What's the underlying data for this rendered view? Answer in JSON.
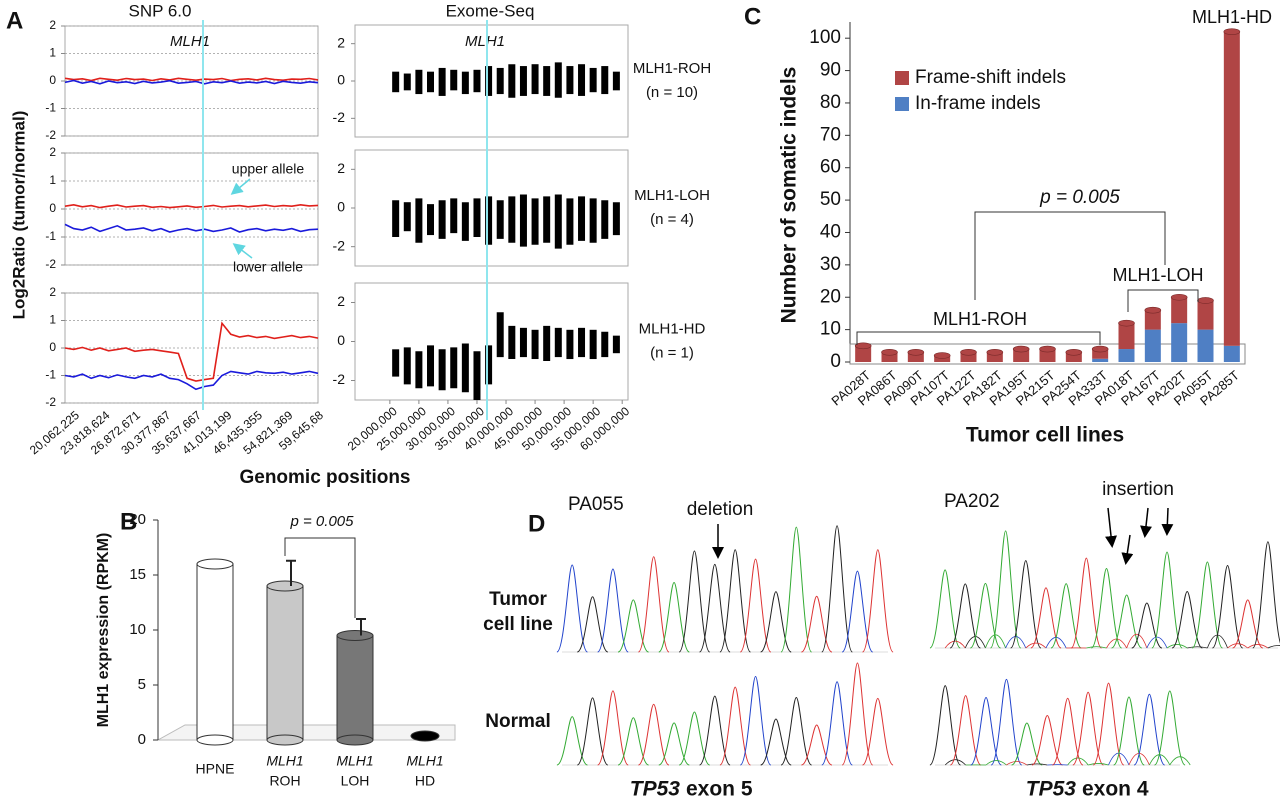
{
  "panel_labels": [
    "A",
    "B",
    "C",
    "D"
  ],
  "chart_data": [
    {
      "type": "line",
      "title": "SNP 6.0",
      "gene_label": "MLH1",
      "ylabel": "Log2Ratio (tumor/normal)",
      "xlabel": "Genomic positions",
      "x_labels": [
        "20,062,225",
        "23,818,624",
        "26,872,671",
        "30,377,867",
        "35,637,667",
        "41,013,199",
        "46,435,355",
        "54,821,369",
        "59,645,68"
      ],
      "ylim": [
        -2,
        2
      ],
      "yticks": [
        -2,
        -1,
        0,
        1,
        2
      ],
      "grid": true,
      "panels": [
        {
          "series": [
            {
              "color": "#e0201b",
              "values": [
                0.1,
                0.05,
                0.08,
                0.02,
                0.1,
                0.06,
                0.03,
                0.09,
                0.05,
                0.07,
                0.02,
                0.08,
                0.04,
                0.1,
                0.06,
                0.03,
                0.07,
                0.05,
                0.09,
                0.02,
                0.06,
                0.08,
                0.04,
                0.1,
                0.05,
                0.03,
                0.07,
                0.06,
                0.09,
                0.04
              ]
            },
            {
              "color": "#1a1adb",
              "values": [
                -0.05,
                0.02,
                -0.08,
                -0.02,
                -0.1,
                0,
                -0.06,
                -0.03,
                -0.09,
                -0.01,
                -0.07,
                -0.04,
                0.01,
                -0.08,
                -0.05,
                -0.02,
                -0.1,
                -0.03,
                -0.06,
                0,
                -0.08,
                -0.04,
                -0.07,
                -0.02,
                -0.09,
                -0.01,
                -0.05,
                -0.08,
                -0.03,
                -0.06
              ]
            }
          ]
        },
        {
          "series": [
            {
              "color": "#e0201b",
              "values": [
                0.1,
                0.15,
                0.08,
                0.12,
                0.05,
                0.1,
                0.14,
                0.07,
                0.1,
                0.12,
                0.06,
                0.09,
                0.05,
                0.08,
                0.11,
                0.06,
                0.09,
                0.13,
                0.07,
                0.1,
                0.12,
                0.08,
                0.11,
                0.14,
                0.09,
                0.12,
                0.1,
                0.15,
                0.11,
                0.13
              ]
            },
            {
              "color": "#1a1adb",
              "values": [
                -0.55,
                -0.7,
                -0.75,
                -0.65,
                -0.8,
                -0.7,
                -0.6,
                -0.75,
                -0.72,
                -0.68,
                -0.78,
                -0.7,
                -0.82,
                -0.75,
                -0.7,
                -0.78,
                -0.72,
                -0.8,
                -0.75,
                -0.68,
                -0.82,
                -0.74,
                -0.7,
                -0.78,
                -0.72,
                -0.76,
                -0.7,
                -0.8,
                -0.74,
                -0.72
              ]
            }
          ],
          "annotations": [
            "upper allele",
            "lower allele"
          ]
        },
        {
          "series": [
            {
              "color": "#e0201b",
              "values": [
                0,
                -0.05,
                0.02,
                -0.08,
                0,
                -0.1,
                -0.05,
                0,
                -0.12,
                -0.08,
                -0.05,
                -0.1,
                -0.15,
                -0.2,
                -1.1,
                -1.2,
                -1.15,
                -1.1,
                0.9,
                0.5,
                0.4,
                0.45,
                0.38,
                0.42,
                0.35,
                0.4,
                0.45,
                0.38,
                0.42,
                0.36
              ]
            },
            {
              "color": "#1a1adb",
              "values": [
                -1,
                -1.05,
                -0.95,
                -1.1,
                -1,
                -1.08,
                -0.98,
                -1.05,
                -1.1,
                -1,
                -1.05,
                -0.95,
                -1.1,
                -1.15,
                -1.3,
                -1.5,
                -1.4,
                -1.35,
                -1,
                -0.85,
                -0.9,
                -0.95,
                -0.85,
                -0.9,
                -0.92,
                -0.88,
                -0.95,
                -0.9,
                -0.85,
                -0.92
              ]
            }
          ]
        }
      ]
    },
    {
      "type": "range",
      "title": "Exome-Seq",
      "gene_label": "MLH1",
      "color": "#000000",
      "xlim": [
        14000000,
        61000000
      ],
      "xticks": [
        {
          "value": 20000000,
          "label": "20,000,000"
        },
        {
          "value": 25000000,
          "label": "25,000,000"
        },
        {
          "value": 30000000,
          "label": "30,000,000"
        },
        {
          "value": 35000000,
          "label": "35,000,000"
        },
        {
          "value": 40000000,
          "label": "40,000,000"
        },
        {
          "value": 45000000,
          "label": "45,000,000"
        },
        {
          "value": 50000000,
          "label": "50,000,000"
        },
        {
          "value": 55000000,
          "label": "55,000,000"
        },
        {
          "value": 60000000,
          "label": "60,000,000"
        }
      ],
      "ylim": [
        -3,
        3
      ],
      "yticks": [
        -2,
        0,
        2
      ],
      "x": [
        21000000,
        23000000,
        25000000,
        27000000,
        29000000,
        31000000,
        33000000,
        35000000,
        37000000,
        39000000,
        41000000,
        43000000,
        45000000,
        47000000,
        49000000,
        51000000,
        53000000,
        55000000,
        57000000,
        59000000
      ],
      "panels": [
        {
          "label": "MLH1-ROH",
          "n_label": "(n = 10)",
          "low": [
            -0.6,
            -0.5,
            -0.7,
            -0.6,
            -0.8,
            -0.5,
            -0.7,
            -0.6,
            -0.8,
            -0.7,
            -0.9,
            -0.8,
            -0.7,
            -0.8,
            -0.9,
            -0.7,
            -0.8,
            -0.6,
            -0.7,
            -0.5
          ],
          "high": [
            0.5,
            0.4,
            0.6,
            0.5,
            0.7,
            0.6,
            0.5,
            0.6,
            0.8,
            0.7,
            0.9,
            0.8,
            0.9,
            0.8,
            1.0,
            0.8,
            0.9,
            0.7,
            0.8,
            0.5
          ]
        },
        {
          "label": "MLH1-LOH",
          "n_label": "(n = 4)",
          "low": [
            -1.5,
            -1.2,
            -1.8,
            -1.4,
            -1.6,
            -1.3,
            -1.7,
            -1.5,
            -1.9,
            -1.6,
            -1.8,
            -2.0,
            -1.9,
            -1.8,
            -2.1,
            -1.9,
            -1.7,
            -1.8,
            -1.6,
            -1.4
          ],
          "high": [
            0.4,
            0.3,
            0.5,
            0.2,
            0.4,
            0.5,
            0.3,
            0.5,
            0.6,
            0.4,
            0.6,
            0.7,
            0.5,
            0.6,
            0.7,
            0.5,
            0.6,
            0.5,
            0.4,
            0.3
          ]
        },
        {
          "label": "MLH1-HD",
          "n_label": "(n = 1)",
          "low": [
            -1.8,
            -2.2,
            -2.4,
            -2.3,
            -2.5,
            -2.4,
            -2.6,
            -3.0,
            -2.2,
            -0.8,
            -0.9,
            -0.8,
            -0.9,
            -1.0,
            -0.8,
            -0.9,
            -0.8,
            -0.9,
            -0.8,
            -0.6
          ],
          "high": [
            -0.4,
            -0.3,
            -0.5,
            -0.2,
            -0.4,
            -0.3,
            -0.1,
            -0.5,
            -0.2,
            1.5,
            0.8,
            0.7,
            0.6,
            0.8,
            0.7,
            0.6,
            0.7,
            0.6,
            0.5,
            0.3
          ]
        }
      ]
    },
    {
      "type": "stacked-bar",
      "ylabel": "Number of somatic indels",
      "xlabel": "Tumor cell lines",
      "categories": [
        "PA028T",
        "PA086T",
        "PA090T",
        "PA107T",
        "PA122T",
        "PA182T",
        "PA195T",
        "PA215T",
        "PA254T",
        "PA333T",
        "PA018T",
        "PA167T",
        "PA202T",
        "PA055T",
        "PA285T"
      ],
      "series": [
        {
          "name": "Frame-shift indels",
          "color": "#b04545",
          "values": [
            5,
            3,
            3,
            2,
            3,
            3,
            4,
            4,
            3,
            3,
            8,
            6,
            8,
            9,
            97
          ]
        },
        {
          "name": "In-frame indels",
          "color": "#4f7fc4",
          "values": [
            0,
            0,
            0,
            0,
            0,
            0,
            0,
            0,
            0,
            1,
            4,
            10,
            12,
            10,
            5
          ]
        }
      ],
      "ylim": [
        0,
        105
      ],
      "yticks": [
        0,
        10,
        20,
        30,
        40,
        50,
        60,
        70,
        80,
        90,
        100
      ],
      "annotations": {
        "hd": "MLH1-HD",
        "p": "p = 0.005",
        "loh": "MLH1-LOH",
        "roh": "MLH1-ROH"
      }
    },
    {
      "type": "bar",
      "ylabel": "MLH1 expression (RPKM)",
      "categories": [
        "HPNE",
        "ROH",
        "LOH",
        "HD"
      ],
      "category_prefix": [
        null,
        "MLH1",
        "MLH1",
        "MLH1"
      ],
      "values": [
        16,
        14,
        9.5,
        0
      ],
      "errors": [
        null,
        2.3,
        1.5,
        null
      ],
      "colors": [
        "#ffffff",
        "#c8c8c8",
        "#777777",
        "#000000"
      ],
      "ylim": [
        0,
        20
      ],
      "yticks": [
        0,
        5,
        10,
        15,
        20
      ],
      "p_label": "p = 0.005"
    }
  ],
  "figure_d": {
    "row_labels": [
      "Tumor",
      "cell line",
      "Normal"
    ],
    "left": {
      "sample": "PA055",
      "annotation": "deletion",
      "gene": "TP53",
      "exon": "exon 5"
    },
    "right": {
      "sample": "PA202",
      "annotation": "insertion",
      "gene": "TP53",
      "exon": "exon 4"
    }
  }
}
